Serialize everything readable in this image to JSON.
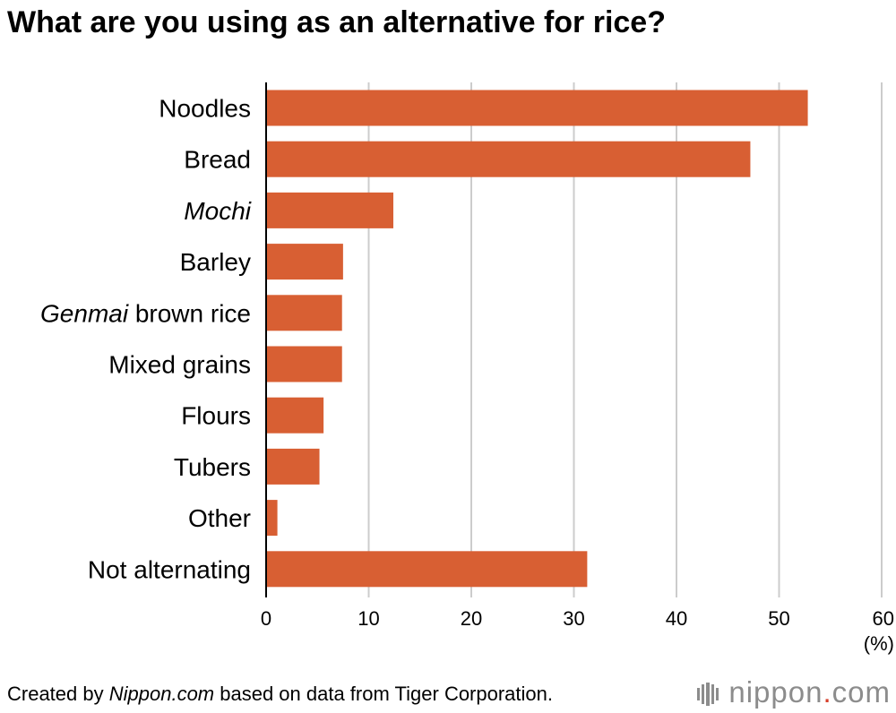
{
  "title": "What are you using as an alternative for rice?",
  "chart_data": {
    "type": "bar",
    "orientation": "horizontal",
    "categories": [
      "Noodles",
      "Bread",
      "Mochi",
      "Barley",
      "Genmai brown rice",
      "Mixed grains",
      "Flours",
      "Tubers",
      "Other",
      "Not alternating"
    ],
    "category_parts": [
      [
        {
          "text": "Noodles",
          "italic": false
        }
      ],
      [
        {
          "text": "Bread",
          "italic": false
        }
      ],
      [
        {
          "text": "Mochi",
          "italic": true
        }
      ],
      [
        {
          "text": "Barley",
          "italic": false
        }
      ],
      [
        {
          "text": "Genmai",
          "italic": true
        },
        {
          "text": " brown rice",
          "italic": false
        }
      ],
      [
        {
          "text": "Mixed grains",
          "italic": false
        }
      ],
      [
        {
          "text": "Flours",
          "italic": false
        }
      ],
      [
        {
          "text": "Tubers",
          "italic": false
        }
      ],
      [
        {
          "text": "Other",
          "italic": false
        }
      ],
      [
        {
          "text": "Not alternating",
          "italic": false
        }
      ]
    ],
    "values": [
      52.8,
      47.2,
      12.4,
      7.5,
      7.4,
      7.4,
      5.6,
      5.2,
      1.1,
      31.3
    ],
    "xlim": [
      0,
      60
    ],
    "xticks": [
      0,
      10,
      20,
      30,
      40,
      50,
      60
    ],
    "xunit": "(%)",
    "bar_color": "#d85f33",
    "grid": true,
    "grid_color": "#cccccc",
    "axis_color": "#000000"
  },
  "footer": {
    "prefix": "Created by ",
    "source_italic": "Nippon.com",
    "suffix": " based on data from Tiger Corporation."
  },
  "logo": {
    "name": "nippon",
    "dot": ".",
    "tld": "com"
  }
}
